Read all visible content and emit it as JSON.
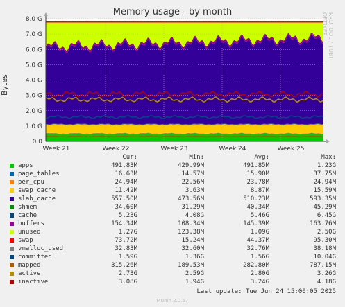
{
  "chart_data": {
    "type": "area",
    "title": "Memory usage - by month",
    "ylabel": "Bytes",
    "y_ticks": [
      "0.0",
      "1.0 G",
      "2.0 G",
      "3.0 G",
      "4.0 G",
      "5.0 G",
      "6.0 G",
      "7.0 G",
      "8.0 G"
    ],
    "x_ticks": [
      "Week 21",
      "Week 22",
      "Week 23",
      "Week 24",
      "Week 25"
    ],
    "ylim_gb": [
      0,
      8
    ],
    "grid": true,
    "side_label": "RRDTOOL / TOBI OETIKER",
    "stacked_series_gb": [
      {
        "name": "apps",
        "color": "#00cc00",
        "value": 0.49
      },
      {
        "name": "page_tables",
        "color": "#0066b3",
        "value": 0.016
      },
      {
        "name": "per_cpu",
        "color": "#ff8000",
        "value": 0.025
      },
      {
        "name": "swap_cache",
        "color": "#ffcc00",
        "value": 0.011
      },
      {
        "name": "slab_cache",
        "color": "#ffcc00",
        "value": 0.55
      },
      {
        "name": "shmem",
        "color": "#008f00",
        "value": 0.035
      },
      {
        "name": "cache",
        "color": "#330099",
        "value": 5.23
      },
      {
        "name": "buffers",
        "color": "#990099",
        "value": 0.15
      },
      {
        "name": "unused",
        "color": "#ccff00",
        "value": 1.27
      },
      {
        "name": "swap",
        "color": "#ff0000",
        "value": 0.074
      }
    ],
    "line_series_gb": [
      {
        "name": "committed",
        "color": "#00487d",
        "value": 1.59
      },
      {
        "name": "mapped",
        "color": "#b35a00",
        "value": 0.315
      },
      {
        "name": "active",
        "color": "#b38f00",
        "value": 2.73
      },
      {
        "name": "inactive",
        "color": "#b30000",
        "value": 3.08
      }
    ]
  },
  "legend": {
    "headers": [
      "Cur:",
      "Min:",
      "Avg:",
      "Max:"
    ],
    "rows": [
      {
        "name": "apps",
        "color": "#00cc00",
        "cur": "491.83M",
        "min": "429.99M",
        "avg": "491.85M",
        "max": "1.23G"
      },
      {
        "name": "page_tables",
        "color": "#0066b3",
        "cur": "16.63M",
        "min": "14.57M",
        "avg": "15.90M",
        "max": "37.75M"
      },
      {
        "name": "per_cpu",
        "color": "#ff8000",
        "cur": "24.94M",
        "min": "22.56M",
        "avg": "23.78M",
        "max": "24.94M"
      },
      {
        "name": "swap_cache",
        "color": "#ffcc00",
        "cur": "11.42M",
        "min": "3.63M",
        "avg": "8.87M",
        "max": "15.59M"
      },
      {
        "name": "slab_cache",
        "color": "#330099",
        "cur": "557.50M",
        "min": "473.56M",
        "avg": "510.23M",
        "max": "593.35M"
      },
      {
        "name": "shmem",
        "color": "#008f00",
        "cur": "34.60M",
        "min": "31.29M",
        "avg": "40.34M",
        "max": "45.29M"
      },
      {
        "name": "cache",
        "color": "#00487d",
        "cur": "5.23G",
        "min": "4.08G",
        "avg": "5.46G",
        "max": "6.45G"
      },
      {
        "name": "buffers",
        "color": "#990099",
        "cur": "154.34M",
        "min": "108.34M",
        "avg": "145.39M",
        "max": "163.76M"
      },
      {
        "name": "unused",
        "color": "#ccff00",
        "cur": "1.27G",
        "min": "123.38M",
        "avg": "1.09G",
        "max": "2.50G"
      },
      {
        "name": "swap",
        "color": "#ff0000",
        "cur": "73.72M",
        "min": "15.24M",
        "avg": "44.37M",
        "max": "95.30M"
      },
      {
        "name": "vmalloc_used",
        "color": "#808080",
        "cur": "32.83M",
        "min": "32.60M",
        "avg": "32.76M",
        "max": "38.18M"
      },
      {
        "name": "committed",
        "color": "#00487d",
        "cur": "1.59G",
        "min": "1.36G",
        "avg": "1.56G",
        "max": "10.04G"
      },
      {
        "name": "mapped",
        "color": "#b35a00",
        "cur": "315.26M",
        "min": "189.53M",
        "avg": "282.80M",
        "max": "787.15M"
      },
      {
        "name": "active",
        "color": "#b38f00",
        "cur": "2.73G",
        "min": "2.59G",
        "avg": "2.80G",
        "max": "3.26G"
      },
      {
        "name": "inactive",
        "color": "#b30000",
        "cur": "3.08G",
        "min": "1.94G",
        "avg": "3.24G",
        "max": "4.18G"
      }
    ]
  },
  "footer": {
    "last_update": "Last update: Tue Jun 24 15:00:05 2025",
    "munin": "Munin 2.0.67"
  }
}
